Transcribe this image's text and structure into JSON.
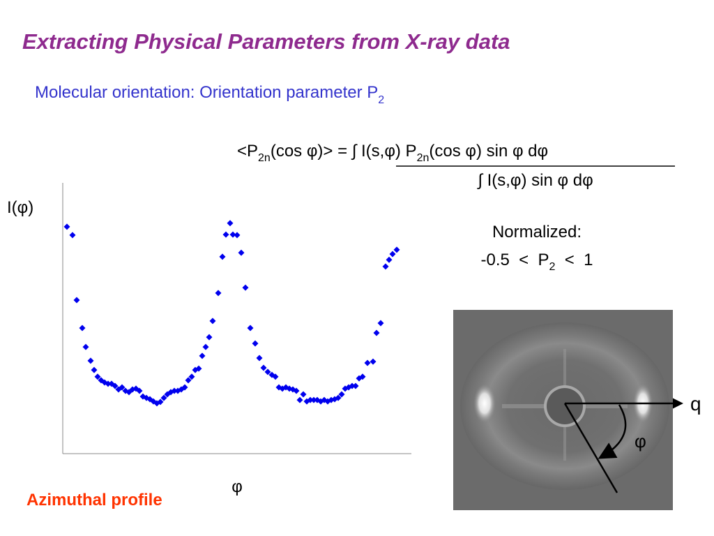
{
  "header": {
    "title": "Extracting Physical Parameters from X-ray data",
    "subtitle": "Molecular orientation: Orientation parameter P",
    "subtitle_sub": "2"
  },
  "formula": {
    "numerator": [
      "<P",
      "2n",
      "(cos φ)> = ",
      "∫ I(s,φ) P",
      "2n",
      "(cos φ) sin φ dφ"
    ],
    "denominator": "∫ I(s,φ) sin φ dφ"
  },
  "normalized": {
    "label": "Normalized:",
    "range": [
      "-0.5  <  P",
      "2",
      "  <  1"
    ]
  },
  "chart_data": {
    "type": "scatter",
    "y_label": "I(φ)",
    "x_label": "φ",
    "color": "#0000ee",
    "xlim": [
      0,
      100
    ],
    "ylim": [
      0,
      100
    ],
    "x": [
      1.2,
      2.8,
      4,
      5.6,
      6.6,
      8,
      9,
      10,
      11,
      12,
      13,
      14,
      15,
      16,
      17,
      18,
      19,
      20,
      21,
      22,
      23,
      24,
      25,
      26,
      27,
      28,
      29,
      30,
      31,
      32,
      33,
      34,
      35,
      36,
      37,
      38,
      39,
      40,
      41,
      42,
      43,
      44.6,
      45.8,
      46.8,
      48,
      48.8,
      50,
      51.2,
      52.4,
      53.8,
      55.2,
      56.4,
      57.6,
      58.8,
      60,
      61,
      62,
      63,
      64,
      65,
      66,
      67,
      68,
      69,
      70,
      71,
      72,
      73,
      74,
      75,
      76,
      77,
      78,
      79,
      80,
      81,
      82,
      83,
      84,
      85,
      86,
      87.4,
      89,
      90,
      91.2,
      92.6,
      93.6,
      94.6,
      95.8
    ],
    "values": [
      83.8,
      80.7,
      56.7,
      46.4,
      39.4,
      34.3,
      30.9,
      28.4,
      27.1,
      26.3,
      25.8,
      25.8,
      25,
      23.7,
      24.5,
      23.2,
      22.7,
      23.7,
      24,
      23.2,
      21.1,
      20.6,
      20.1,
      19.3,
      18.6,
      19.1,
      20.6,
      21.9,
      22.7,
      23.2,
      23.2,
      23.7,
      24.5,
      27.1,
      28.4,
      30.9,
      31.4,
      36.1,
      39.4,
      43,
      49,
      59.3,
      72.7,
      80.9,
      85.1,
      80.9,
      80.7,
      74.2,
      61.3,
      46.4,
      40.7,
      35.3,
      31.7,
      30.2,
      29.1,
      28.4,
      24.5,
      24,
      24.5,
      24,
      23.7,
      23.2,
      19.8,
      21.9,
      19.3,
      19.8,
      19.8,
      19.8,
      19.3,
      19.8,
      19.3,
      19.8,
      20.1,
      20.6,
      21.9,
      24,
      24.5,
      25,
      25,
      27.8,
      28.4,
      33.5,
      34,
      44.6,
      48.2,
      69.1,
      71.6,
      73.7,
      75.3
    ]
  },
  "caption": "Azimuthal profile",
  "diagram": {
    "q_label": "q",
    "phi_label": "φ"
  }
}
